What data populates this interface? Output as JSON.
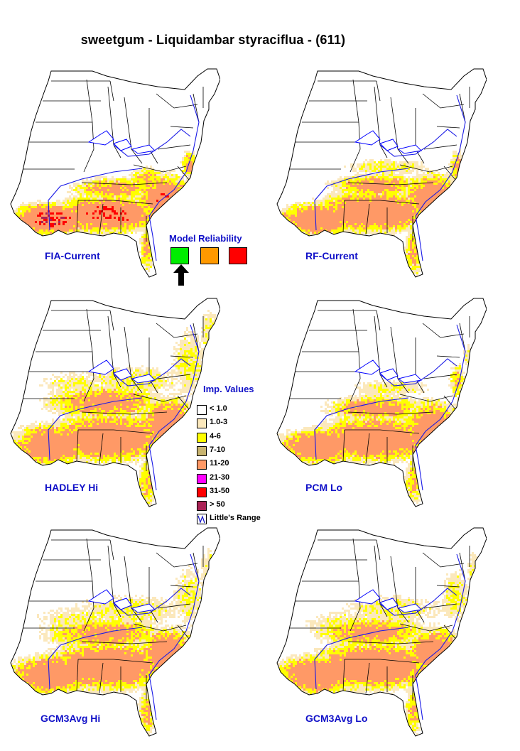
{
  "title": "sweetgum - Liquidambar styraciflua - (611)",
  "panels": [
    {
      "label": "FIA-Current",
      "scenario": "fia"
    },
    {
      "label": "RF-Current",
      "scenario": "rf"
    },
    {
      "label": "HADLEY Hi",
      "scenario": "hadley"
    },
    {
      "label": "PCM Lo",
      "scenario": "pcm"
    },
    {
      "label": "GCM3Avg Hi",
      "scenario": "gcm_hi"
    },
    {
      "label": "GCM3Avg Lo",
      "scenario": "gcm_lo"
    }
  ],
  "reliability": {
    "title": "Model Reliability",
    "levels": [
      {
        "color": "#00ee00",
        "selected": true
      },
      {
        "color": "#ff9900",
        "selected": false
      },
      {
        "color": "#ff0000",
        "selected": false
      }
    ]
  },
  "legend": {
    "title": "Imp. Values",
    "items": [
      {
        "label": "< 1.0",
        "color": "#ffffff"
      },
      {
        "label": "1.0-3",
        "color": "#fbe8bc"
      },
      {
        "label": "4-6",
        "color": "#ffff00"
      },
      {
        "label": "7-10",
        "color": "#c8b470"
      },
      {
        "label": "11-20",
        "color": "#ff9966"
      },
      {
        "label": "21-30",
        "color": "#ff00ff"
      },
      {
        "label": "31-50",
        "color": "#ff0000"
      },
      {
        "label": "> 50",
        "color": "#aa2255"
      },
      {
        "label": "Little's Range",
        "color": "#1010c8"
      }
    ]
  },
  "colors": {
    "label_blue": "#1010c8",
    "range_line": "#1a1ae6",
    "coast": "#0000ff"
  }
}
